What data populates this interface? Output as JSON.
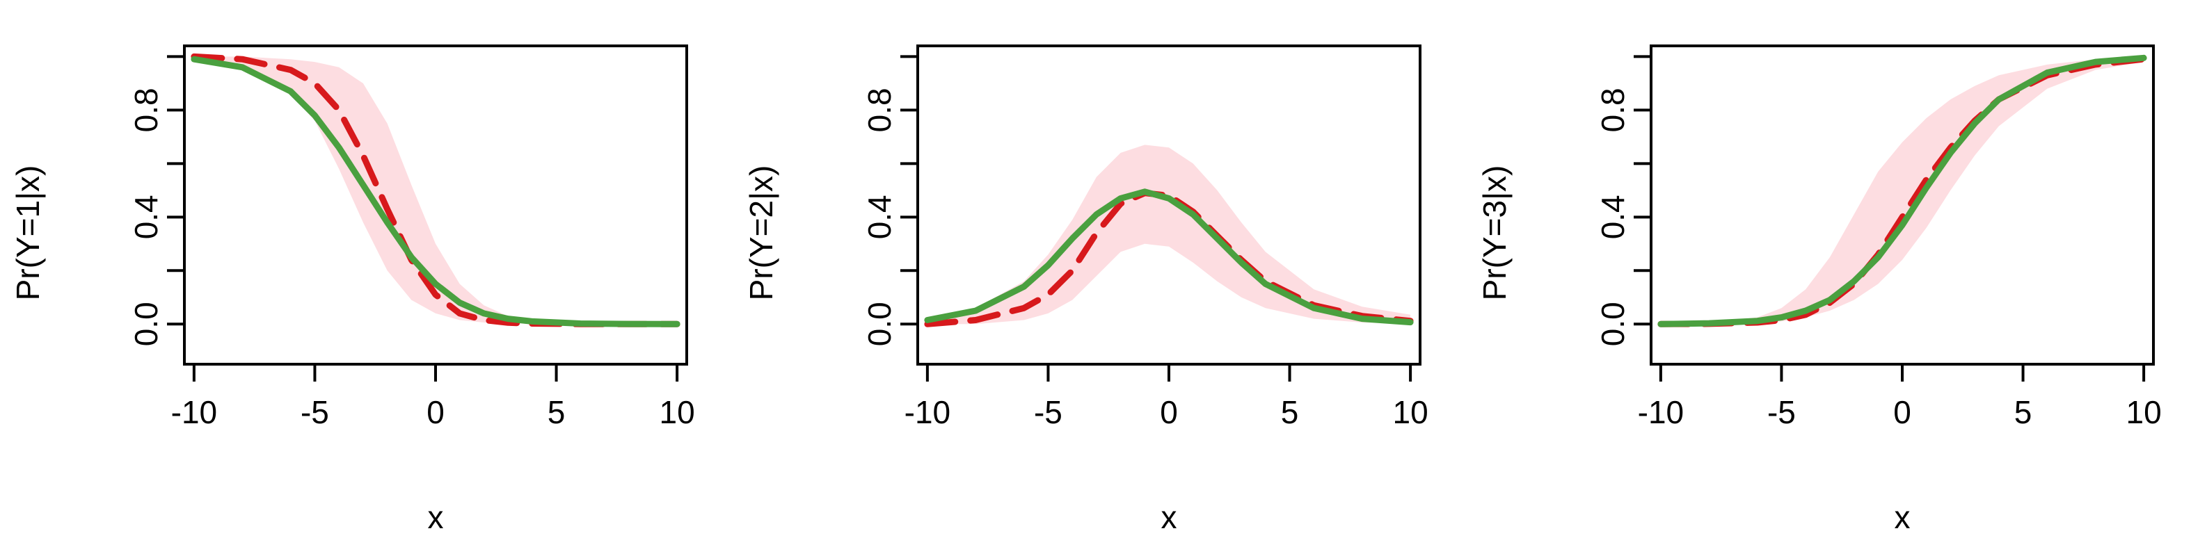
{
  "colors": {
    "background": "#ffffff",
    "axes": "#000000",
    "band": "#fddde1",
    "dashed": "#d7191c",
    "solid": "#4aa03f"
  },
  "chart_data": [
    {
      "type": "line",
      "title": "",
      "xlabel": "x",
      "ylabel": "Pr(Y=1|x)",
      "xlim": [
        -10.4,
        10.4
      ],
      "ylim": [
        -0.15,
        1.04
      ],
      "xticks": [
        -10,
        -5,
        0,
        5,
        10
      ],
      "xtick_labels": [
        "-10",
        "-5",
        "0",
        "5",
        "10"
      ],
      "yticks": [
        0,
        0.2,
        0.4,
        0.6,
        0.8,
        1.0
      ],
      "ytick_labels": [
        "0.0",
        "",
        "0.4",
        "",
        "0.8",
        ""
      ],
      "grid": false,
      "legend": "none",
      "x": [
        -10,
        -8,
        -6,
        -5,
        -4,
        -3,
        -2,
        -1,
        0,
        1,
        2,
        3,
        4,
        6,
        8,
        10
      ],
      "series": [
        {
          "style": "solid",
          "values": [
            0.99,
            0.96,
            0.87,
            0.78,
            0.66,
            0.52,
            0.38,
            0.25,
            0.15,
            0.08,
            0.04,
            0.02,
            0.01,
            0.002,
            0.0005,
            0.0001
          ]
        },
        {
          "style": "dashed",
          "values": [
            1.0,
            0.99,
            0.95,
            0.9,
            0.8,
            0.63,
            0.43,
            0.24,
            0.11,
            0.04,
            0.015,
            0.005,
            0.002,
            0.0003,
            0.0,
            0.0
          ]
        }
      ],
      "band": {
        "lower": [
          0.98,
          0.96,
          0.86,
          0.76,
          0.58,
          0.38,
          0.2,
          0.09,
          0.04,
          0.015,
          0.006,
          0.003,
          0.001,
          0.0,
          0.0,
          0.0
        ],
        "upper": [
          1.0,
          1.0,
          0.99,
          0.98,
          0.96,
          0.9,
          0.75,
          0.52,
          0.3,
          0.15,
          0.07,
          0.03,
          0.015,
          0.004,
          0.001,
          0.0003
        ]
      }
    },
    {
      "type": "line",
      "title": "",
      "xlabel": "x",
      "ylabel": "Pr(Y=2|x)",
      "xlim": [
        -10.4,
        10.4
      ],
      "ylim": [
        -0.15,
        1.04
      ],
      "xticks": [
        -10,
        -5,
        0,
        5,
        10
      ],
      "xtick_labels": [
        "-10",
        "-5",
        "0",
        "5",
        "10"
      ],
      "yticks": [
        0,
        0.2,
        0.4,
        0.6,
        0.8,
        1.0
      ],
      "ytick_labels": [
        "0.0",
        "",
        "0.4",
        "",
        "0.8",
        ""
      ],
      "grid": false,
      "legend": "none",
      "x": [
        -10,
        -8,
        -6,
        -5,
        -4,
        -3,
        -2,
        -1,
        0,
        1,
        2,
        3,
        4,
        6,
        8,
        10
      ],
      "series": [
        {
          "style": "solid",
          "values": [
            0.015,
            0.05,
            0.14,
            0.22,
            0.32,
            0.41,
            0.47,
            0.495,
            0.47,
            0.41,
            0.32,
            0.23,
            0.15,
            0.06,
            0.02,
            0.007
          ]
        },
        {
          "style": "dashed",
          "values": [
            0.0,
            0.015,
            0.06,
            0.11,
            0.2,
            0.34,
            0.45,
            0.49,
            0.48,
            0.42,
            0.33,
            0.24,
            0.16,
            0.07,
            0.03,
            0.012
          ]
        }
      ],
      "band": {
        "lower": [
          0.0,
          0.0,
          0.015,
          0.04,
          0.09,
          0.18,
          0.27,
          0.3,
          0.29,
          0.23,
          0.16,
          0.1,
          0.06,
          0.02,
          0.006,
          0.002
        ],
        "upper": [
          0.02,
          0.06,
          0.16,
          0.26,
          0.39,
          0.55,
          0.64,
          0.67,
          0.66,
          0.6,
          0.5,
          0.38,
          0.27,
          0.13,
          0.065,
          0.035
        ]
      }
    },
    {
      "type": "line",
      "title": "",
      "xlabel": "x",
      "ylabel": "Pr(Y=3|x)",
      "xlim": [
        -10.4,
        10.4
      ],
      "ylim": [
        -0.15,
        1.04
      ],
      "xticks": [
        -10,
        -5,
        0,
        5,
        10
      ],
      "xtick_labels": [
        "-10",
        "-5",
        "0",
        "5",
        "10"
      ],
      "yticks": [
        0,
        0.2,
        0.4,
        0.6,
        0.8,
        1.0
      ],
      "ytick_labels": [
        "0.0",
        "",
        "0.4",
        "",
        "0.8",
        ""
      ],
      "grid": false,
      "legend": "none",
      "x": [
        -10,
        -8,
        -6,
        -5,
        -4,
        -3,
        -2,
        -1,
        0,
        1,
        2,
        3,
        4,
        6,
        8,
        10
      ],
      "series": [
        {
          "style": "solid",
          "values": [
            0.0,
            0.003,
            0.012,
            0.025,
            0.05,
            0.09,
            0.16,
            0.25,
            0.37,
            0.51,
            0.64,
            0.75,
            0.84,
            0.94,
            0.98,
            0.995
          ]
        },
        {
          "style": "dashed",
          "values": [
            0.0,
            0.001,
            0.006,
            0.015,
            0.035,
            0.08,
            0.15,
            0.26,
            0.4,
            0.54,
            0.66,
            0.76,
            0.84,
            0.93,
            0.97,
            0.99
          ]
        }
      ],
      "band": {
        "lower": [
          0.0,
          0.0,
          0.004,
          0.01,
          0.025,
          0.05,
          0.09,
          0.15,
          0.24,
          0.36,
          0.5,
          0.63,
          0.74,
          0.88,
          0.95,
          0.98
        ],
        "upper": [
          0.0,
          0.006,
          0.025,
          0.06,
          0.13,
          0.25,
          0.41,
          0.57,
          0.68,
          0.77,
          0.84,
          0.89,
          0.93,
          0.97,
          0.99,
          1.0
        ]
      }
    }
  ]
}
